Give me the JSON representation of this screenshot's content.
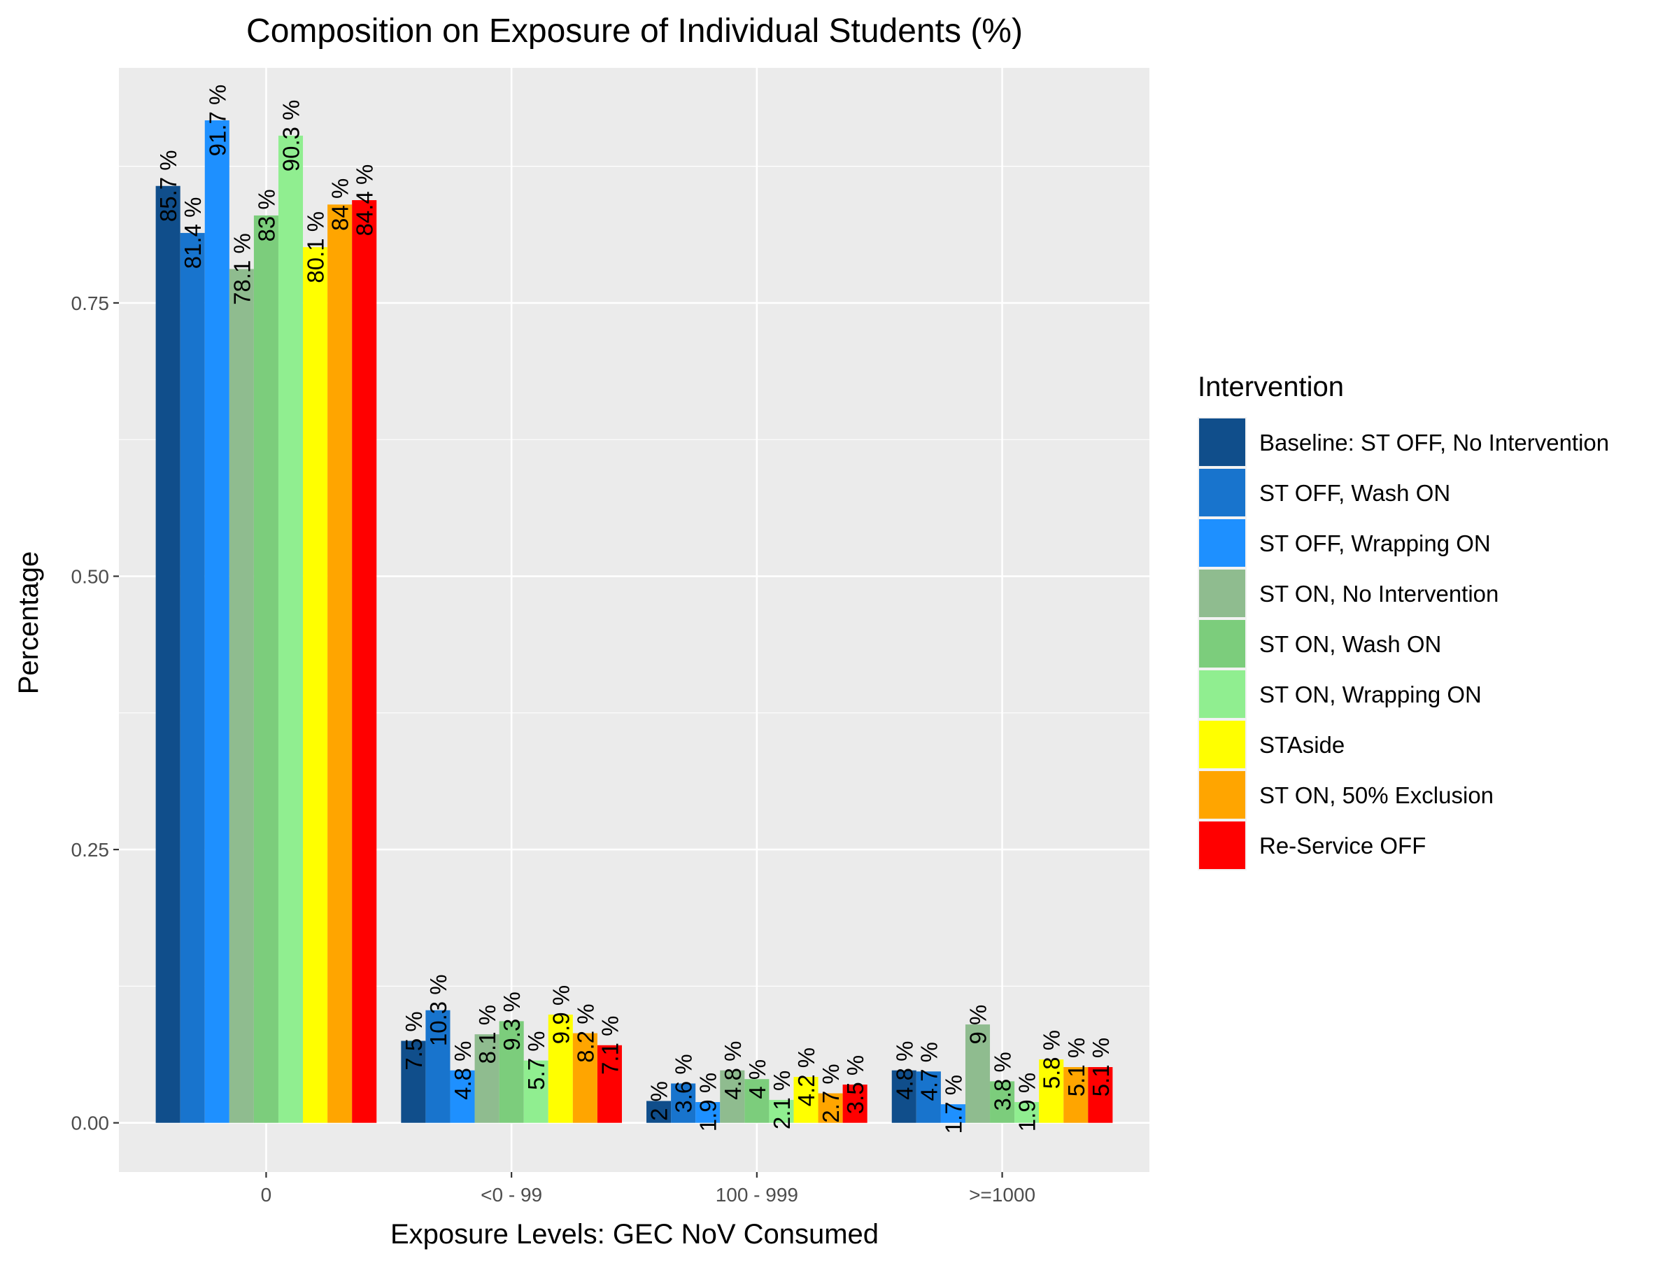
{
  "chart_data": {
    "type": "bar",
    "title": "Composition on Exposure of Individual Students (%)",
    "xlabel": "Exposure Levels: GEC NoV Consumed",
    "ylabel": "Percentage",
    "ylim": [
      -0.045,
      0.965
    ],
    "yticks": [
      0.0,
      0.25,
      0.5,
      0.75
    ],
    "ytick_labels": [
      "0.00",
      "0.25",
      "0.50",
      "0.75"
    ],
    "categories": [
      "0",
      "<0 - 99",
      "100 - 999",
      ">=1000"
    ],
    "grid": true,
    "legend_title": "Intervention",
    "legend_position": "right",
    "series": [
      {
        "name": "Baseline: ST OFF, No Intervention",
        "color": "#104E8B",
        "values": [
          0.857,
          0.075,
          0.02,
          0.048
        ],
        "labels": [
          "85.7 %",
          "7.5 %",
          "2 %",
          "4.8 %"
        ]
      },
      {
        "name": "ST OFF, Wash ON",
        "color": "#1874CD",
        "values": [
          0.814,
          0.103,
          0.036,
          0.047
        ],
        "labels": [
          "81.4 %",
          "10.3 %",
          "3.6 %",
          "4.7 %"
        ]
      },
      {
        "name": "ST OFF, Wrapping ON",
        "color": "#1E90FF",
        "values": [
          0.917,
          0.048,
          0.019,
          0.017
        ],
        "labels": [
          "91.7 %",
          "4.8 %",
          "1.9 %",
          "1.7 %"
        ]
      },
      {
        "name": "ST ON, No Intervention",
        "color": "#8FBC8F",
        "values": [
          0.781,
          0.081,
          0.048,
          0.09
        ],
        "labels": [
          "78.1 %",
          "8.1 %",
          "4.8 %",
          "9 %"
        ]
      },
      {
        "name": "ST ON, Wash ON",
        "color": "#7CCD7C",
        "values": [
          0.83,
          0.093,
          0.04,
          0.038
        ],
        "labels": [
          "83 %",
          "9.3 %",
          "4 %",
          "3.8 %"
        ]
      },
      {
        "name": "ST ON, Wrapping ON",
        "color": "#90EE90",
        "values": [
          0.903,
          0.057,
          0.021,
          0.019
        ],
        "labels": [
          "90.3 %",
          "5.7 %",
          "2.1 %",
          "1.9 %"
        ]
      },
      {
        "name": "STAside",
        "color": "#FFFF00",
        "values": [
          0.801,
          0.099,
          0.042,
          0.058
        ],
        "labels": [
          "80.1 %",
          "9.9 %",
          "4.2 %",
          "5.8 %"
        ]
      },
      {
        "name": "ST ON, 50% Exclusion",
        "color": "#FFA500",
        "values": [
          0.84,
          0.082,
          0.027,
          0.051
        ],
        "labels": [
          "84 %",
          "8.2 %",
          "2.7 %",
          "5.1 %"
        ]
      },
      {
        "name": "Re-Service OFF",
        "color": "#FF0000",
        "values": [
          0.844,
          0.071,
          0.035,
          0.051
        ],
        "labels": [
          "84.4 %",
          "7.1 %",
          "3.5 %",
          "5.1 %"
        ]
      }
    ]
  }
}
